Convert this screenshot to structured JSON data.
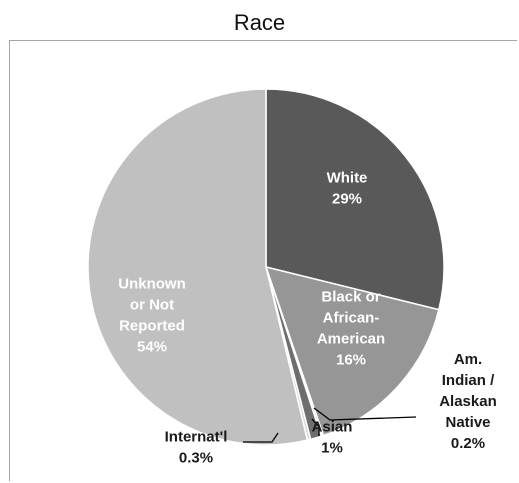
{
  "chart_data": {
    "type": "pie",
    "title": "Race",
    "slices": [
      {
        "name": "White",
        "value": 29,
        "display": "29%",
        "label_lines": [
          "White",
          "29%"
        ],
        "color": "#595959",
        "label_color": "#ffffff",
        "label_inside": true
      },
      {
        "name": "Black or African-American",
        "value": 16,
        "display": "16%",
        "label_lines": [
          "Black or",
          "African-",
          "American",
          "16%"
        ],
        "color": "#969696",
        "label_color": "#ffffff",
        "label_inside": true
      },
      {
        "name": "Am. Indian / Alaskan Native",
        "value": 0.2,
        "display": "0.2%",
        "label_lines": [
          "Am.",
          "Indian /",
          "Alaskan",
          "Native",
          "0.2%"
        ],
        "color": "#e0e0e0",
        "label_color": "#1a1a1a",
        "label_inside": false
      },
      {
        "name": "Asian",
        "value": 1,
        "display": "1%",
        "label_lines": [
          "Asian",
          "1%"
        ],
        "color": "#6e6e6e",
        "label_color": "#1a1a1a",
        "label_inside": false
      },
      {
        "name": "Internat'l",
        "value": 0.3,
        "display": "0.3%",
        "label_lines": [
          "Internat'l",
          "0.3%"
        ],
        "color": "#d9d9d9",
        "label_color": "#1a1a1a",
        "label_inside": false
      },
      {
        "name": "Unknown or Not Reported",
        "value": 54,
        "display": "54%",
        "label_lines": [
          "Unknown",
          "or Not",
          "Reported",
          "54%"
        ],
        "color": "#c0c0c0",
        "label_color": "#ffffff",
        "label_inside": true
      }
    ],
    "legend": "none"
  }
}
